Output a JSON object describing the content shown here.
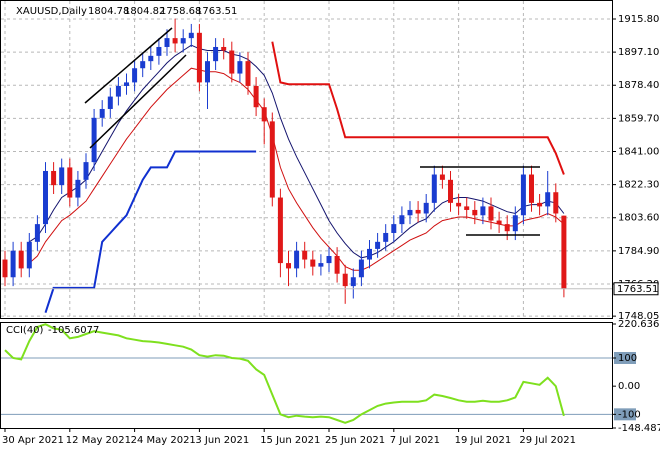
{
  "chart_data": [
    {
      "type": "candlestick",
      "title": "XAUUSD,Daily",
      "categories": [
        "30 Apr 2021",
        null,
        null,
        null,
        null,
        null,
        null,
        null,
        "12 May 2021",
        null,
        null,
        null,
        null,
        null,
        null,
        null,
        "24 May 2021",
        null,
        null,
        null,
        null,
        null,
        null,
        null,
        "3 Jun 2021",
        null,
        null,
        null,
        null,
        null,
        null,
        null,
        "15 Jun 2021",
        null,
        null,
        null,
        null,
        null,
        null,
        null,
        "25 Jun 2021",
        null,
        null,
        null,
        null,
        null,
        null,
        null,
        "7 Jul 2021",
        null,
        null,
        null,
        null,
        null,
        null,
        null,
        "19 Jul 2021",
        null,
        null,
        null,
        null,
        null,
        null,
        null,
        "29 Jul 2021",
        null,
        null,
        null,
        null,
        null
      ],
      "open": [
        1780,
        1770,
        1785,
        1775,
        1790,
        1800,
        1830,
        1822,
        1832,
        1815,
        1825,
        1835,
        1860,
        1865,
        1872,
        1878,
        1880,
        1888,
        1892,
        1895,
        1900,
        1905,
        1902,
        1905,
        1908,
        1880,
        1892,
        1900,
        1898,
        1885,
        1892,
        1878,
        1866,
        1858,
        1815,
        1778,
        1775,
        1785,
        1780,
        1776,
        1778,
        1782,
        1772,
        1765,
        1770,
        1780,
        1786,
        1790,
        1795,
        1800,
        1805,
        1808,
        1806,
        1812,
        1828,
        1825,
        1812,
        1810,
        1808,
        1805,
        1810,
        1802,
        1800,
        1796,
        1805,
        1828,
        1812,
        1810,
        1818,
        1804.78
      ],
      "high": [
        1785,
        1790,
        1790,
        1795,
        1805,
        1835,
        1835,
        1837,
        1837,
        1830,
        1840,
        1865,
        1870,
        1877,
        1883,
        1885,
        1893,
        1897,
        1900,
        1905,
        1910,
        1916,
        1910,
        1913,
        1913,
        1897,
        1905,
        1905,
        1903,
        1897,
        1897,
        1883,
        1871,
        1863,
        1820,
        1785,
        1790,
        1790,
        1785,
        1783,
        1787,
        1787,
        1777,
        1775,
        1785,
        1791,
        1795,
        1800,
        1805,
        1810,
        1813,
        1813,
        1817,
        1833,
        1833,
        1830,
        1817,
        1815,
        1813,
        1815,
        1815,
        1807,
        1805,
        1810,
        1833,
        1833,
        1817,
        1830,
        1823,
        1804.82
      ],
      "low": [
        1765,
        1765,
        1770,
        1770,
        1785,
        1795,
        1817,
        1817,
        1810,
        1810,
        1820,
        1830,
        1855,
        1860,
        1867,
        1873,
        1875,
        1883,
        1887,
        1890,
        1895,
        1897,
        1897,
        1900,
        1875,
        1865,
        1887,
        1893,
        1880,
        1880,
        1873,
        1861,
        1845,
        1810,
        1770,
        1765,
        1770,
        1775,
        1771,
        1771,
        1773,
        1767,
        1755,
        1758,
        1765,
        1775,
        1781,
        1785,
        1790,
        1795,
        1800,
        1801,
        1801,
        1807,
        1820,
        1807,
        1805,
        1803,
        1800,
        1800,
        1797,
        1795,
        1791,
        1791,
        1800,
        1807,
        1805,
        1805,
        1801,
        1758.68
      ],
      "close": [
        1770,
        1785,
        1775,
        1790,
        1800,
        1830,
        1822,
        1832,
        1815,
        1825,
        1835,
        1860,
        1865,
        1872,
        1878,
        1880,
        1888,
        1892,
        1895,
        1900,
        1905,
        1902,
        1905,
        1908,
        1880,
        1892,
        1900,
        1898,
        1885,
        1892,
        1878,
        1866,
        1858,
        1815,
        1778,
        1775,
        1785,
        1780,
        1776,
        1778,
        1782,
        1772,
        1765,
        1770,
        1780,
        1786,
        1790,
        1795,
        1800,
        1805,
        1808,
        1806,
        1812,
        1828,
        1825,
        1812,
        1810,
        1808,
        1805,
        1810,
        1802,
        1800,
        1796,
        1805,
        1828,
        1812,
        1810,
        1818,
        1806,
        1763.51
      ],
      "up_color": "#1a3cd0",
      "down_color": "#e01818",
      "overlays": [
        {
          "color": "#14146e",
          "line_width": 1,
          "values": [
            null,
            null,
            null,
            1790,
            1793,
            1800,
            1808,
            1815,
            1818,
            1821,
            1825,
            1833,
            1841,
            1849,
            1857,
            1864,
            1870,
            1876,
            1881,
            1886,
            1891,
            1895,
            1898,
            1901,
            1899,
            1898,
            1898,
            1898,
            1896,
            1895,
            1893,
            1889,
            1884,
            1874,
            1860,
            1848,
            1838,
            1829,
            1820,
            1811,
            1802,
            1795,
            1789,
            1784,
            1781,
            1782,
            1784,
            1787,
            1790,
            1794,
            1798,
            1801,
            1803,
            1808,
            1812,
            1814,
            1815,
            1815,
            1814,
            1813,
            1811,
            1809,
            1807,
            1806,
            1810,
            1811,
            1811,
            1813,
            1812,
            1806
          ]
        },
        {
          "color": "#d01010",
          "line_width": 1,
          "values": [
            null,
            null,
            null,
            1778,
            1782,
            1790,
            1796,
            1802,
            1805,
            1809,
            1813,
            1820,
            1827,
            1834,
            1841,
            1848,
            1854,
            1860,
            1866,
            1871,
            1876,
            1880,
            1884,
            1888,
            1887,
            1886,
            1886,
            1885,
            1882,
            1880,
            1876,
            1870,
            1864,
            1850,
            1832,
            1820,
            1812,
            1805,
            1798,
            1792,
            1787,
            1782,
            1776,
            1774,
            1774,
            1776,
            1779,
            1782,
            1785,
            1788,
            1791,
            1793,
            1795,
            1799,
            1802,
            1803,
            1804,
            1804,
            1803,
            1802,
            1801,
            1800,
            1799,
            1799,
            1802,
            1803,
            1804,
            1806,
            1804,
            1800
          ]
        },
        {
          "color": "#1030d0",
          "line_width": 2,
          "values": [
            null,
            null,
            null,
            null,
            null,
            1750,
            1764,
            1764,
            1764,
            1764,
            1764,
            1764,
            1790,
            1795,
            1800,
            1805,
            1815,
            1825,
            1832,
            1832,
            1832,
            1841,
            1841,
            1841,
            1841,
            1841,
            1841,
            1841,
            1841,
            1841,
            1841,
            1841,
            null,
            null,
            null,
            null,
            null,
            null,
            null,
            null,
            null,
            null,
            null,
            null,
            null,
            null,
            null,
            null,
            null,
            null,
            null,
            null,
            null,
            null,
            null,
            null,
            null,
            null,
            null,
            null,
            null,
            null,
            null,
            null,
            null,
            null,
            null,
            null,
            null,
            null
          ]
        },
        {
          "color": "#e01010",
          "line_width": 2,
          "values": [
            null,
            null,
            null,
            null,
            null,
            null,
            null,
            null,
            null,
            null,
            null,
            null,
            null,
            null,
            null,
            null,
            null,
            null,
            null,
            null,
            null,
            null,
            null,
            null,
            null,
            null,
            null,
            null,
            null,
            null,
            null,
            null,
            null,
            1903,
            1880,
            1879,
            1879,
            1879,
            1879,
            1879,
            1879,
            1865,
            1849,
            1849,
            1849,
            1849,
            1849,
            1849,
            1849,
            1849,
            1849,
            1849,
            1849,
            1849,
            1849,
            1849,
            1849,
            1849,
            1849,
            1849,
            1849,
            1849,
            1849,
            1849,
            1849,
            1849,
            1849,
            1849,
            1840,
            1828
          ]
        }
      ],
      "ylim": [
        1747,
        1923.7
      ],
      "yticks": [
        {
          "value": 1915.8,
          "label": "1915.80"
        },
        {
          "value": 1897.1,
          "label": "1897.10"
        },
        {
          "value": 1878.4,
          "label": "1878.40"
        },
        {
          "value": 1859.7,
          "label": "1859.70"
        },
        {
          "value": 1841,
          "label": "1841.00"
        },
        {
          "value": 1822.3,
          "label": "1822.30"
        },
        {
          "value": 1803.6,
          "label": "1803.60"
        },
        {
          "value": 1784.9,
          "label": "1784.90"
        },
        {
          "value": 1766.2,
          "label": "1766.20"
        },
        {
          "value": 1748.05,
          "label": "1748.05"
        }
      ],
      "grid": true
    },
    {
      "type": "line",
      "title": "CCI(40)",
      "color": "#7ee01e",
      "values": [
        128,
        100,
        95,
        160,
        210,
        220,
        205,
        200,
        170,
        175,
        185,
        195,
        190,
        185,
        180,
        170,
        165,
        160,
        158,
        155,
        150,
        145,
        140,
        130,
        110,
        105,
        110,
        108,
        100,
        98,
        90,
        60,
        40,
        -30,
        -100,
        -110,
        -105,
        -108,
        -110,
        -108,
        -110,
        -120,
        -130,
        -120,
        -100,
        -85,
        -70,
        -62,
        -58,
        -55,
        -55,
        -55,
        -50,
        -30,
        -35,
        -42,
        -50,
        -55,
        -55,
        -52,
        -55,
        -55,
        -50,
        -40,
        15,
        10,
        5,
        30,
        0,
        -105.6077
      ],
      "ylim": [
        -148.487,
        220.6363
      ],
      "yticks": [
        220.6363,
        100,
        {
          "value": 0,
          "label": "0.00"
        },
        -100,
        -148.487
      ],
      "levels": [
        100,
        -100
      ],
      "level_color": "#7f9db9"
    }
  ]
}
